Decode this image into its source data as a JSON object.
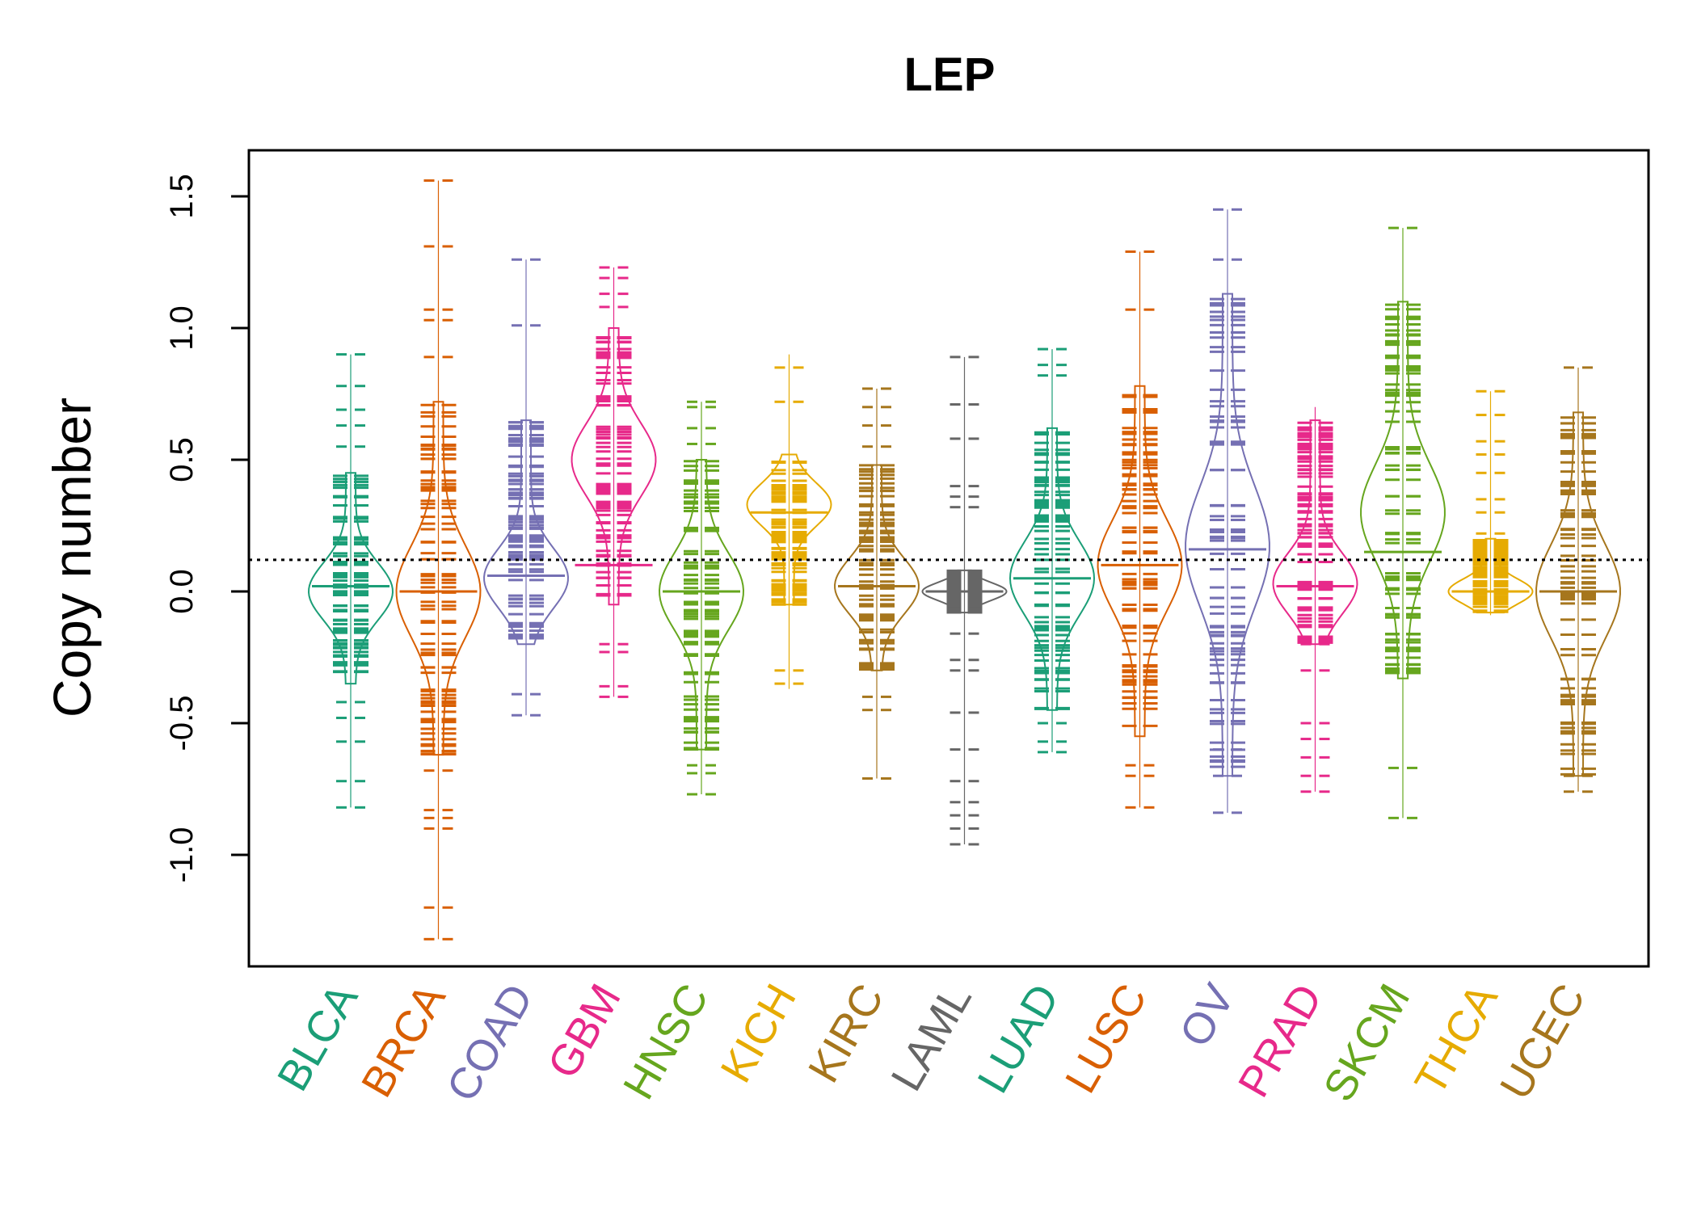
{
  "chart_data": {
    "type": "beanplot",
    "title": "LEP",
    "xlabel": "",
    "ylabel": "Copy number",
    "ylim": [
      -1.43,
      1.68
    ],
    "yticks": [
      -1.0,
      -0.5,
      0.0,
      0.5,
      1.0,
      1.5
    ],
    "ytick_labels": [
      "-1.0",
      "-0.5",
      "0.0",
      "0.5",
      "1.0",
      "1.5"
    ],
    "reference_line": 0.12,
    "categories": [
      "BLCA",
      "BRCA",
      "COAD",
      "GBM",
      "HNSC",
      "KICH",
      "KIRC",
      "LAML",
      "LUAD",
      "LUSC",
      "OV",
      "PRAD",
      "SKCM",
      "THCA",
      "UCEC"
    ],
    "colors": [
      "#1B9E77",
      "#D95F02",
      "#7570B3",
      "#E7298A",
      "#66A61E",
      "#E6AB02",
      "#A6761D",
      "#666666",
      "#1B9E77",
      "#D95F02",
      "#7570B3",
      "#E7298A",
      "#66A61E",
      "#E6AB02",
      "#A6761D"
    ],
    "series": [
      {
        "name": "BLCA",
        "min": -0.82,
        "max": 0.9,
        "median": 0.02,
        "mode": 0.0,
        "upper": 0.45,
        "lower": -0.35,
        "extremes": [
          -0.82,
          -0.72,
          -0.57,
          -0.48,
          -0.42,
          0.55,
          0.63,
          0.69,
          0.78,
          0.9
        ]
      },
      {
        "name": "BRCA",
        "min": -1.32,
        "max": 1.56,
        "median": 0.0,
        "mode": 0.0,
        "upper": 0.72,
        "lower": -0.62,
        "extremes": [
          -1.32,
          -1.2,
          -0.9,
          -0.86,
          -0.83,
          -0.68,
          0.89,
          1.03,
          1.07,
          1.31,
          1.56
        ]
      },
      {
        "name": "COAD",
        "min": -0.47,
        "max": 1.26,
        "median": 0.06,
        "mode": 0.05,
        "upper": 0.65,
        "lower": -0.2,
        "extremes": [
          -0.47,
          -0.39,
          1.01,
          1.26
        ]
      },
      {
        "name": "GBM",
        "min": -0.4,
        "max": 1.23,
        "median": 0.1,
        "mode": 0.5,
        "upper": 1.0,
        "lower": -0.05,
        "extremes": [
          -0.4,
          -0.36,
          -0.23,
          -0.2,
          1.08,
          1.13,
          1.19,
          1.23
        ]
      },
      {
        "name": "HNSC",
        "min": -0.77,
        "max": 0.72,
        "median": 0.0,
        "mode": 0.0,
        "upper": 0.5,
        "lower": -0.6,
        "extremes": [
          -0.77,
          -0.69,
          -0.66,
          0.56,
          0.62,
          0.7,
          0.72
        ]
      },
      {
        "name": "KICH",
        "min": -0.37,
        "max": 0.9,
        "median": 0.3,
        "mode": 0.33,
        "upper": 0.52,
        "lower": -0.05,
        "extremes": [
          -0.35,
          -0.3,
          0.72,
          0.85
        ]
      },
      {
        "name": "KIRC",
        "min": -0.71,
        "max": 0.77,
        "median": 0.02,
        "mode": 0.02,
        "upper": 0.48,
        "lower": -0.3,
        "extremes": [
          -0.71,
          -0.45,
          -0.4,
          0.55,
          0.63,
          0.7,
          0.77
        ]
      },
      {
        "name": "LAML",
        "min": -0.96,
        "max": 0.89,
        "median": 0.0,
        "mode": 0.0,
        "upper": 0.08,
        "lower": -0.08,
        "extremes": [
          -0.96,
          -0.9,
          -0.85,
          -0.8,
          -0.72,
          -0.6,
          -0.46,
          -0.3,
          -0.26,
          -0.16,
          0.32,
          0.36,
          0.4,
          0.58,
          0.71,
          0.89
        ]
      },
      {
        "name": "LUAD",
        "min": -0.61,
        "max": 0.92,
        "median": 0.05,
        "mode": 0.05,
        "upper": 0.62,
        "lower": -0.45,
        "extremes": [
          -0.61,
          -0.57,
          -0.5,
          0.82,
          0.86,
          0.92
        ]
      },
      {
        "name": "LUSC",
        "min": -0.82,
        "max": 1.29,
        "median": 0.1,
        "mode": 0.1,
        "upper": 0.78,
        "lower": -0.55,
        "extremes": [
          -0.82,
          -0.7,
          -0.66,
          1.07,
          1.29
        ]
      },
      {
        "name": "OV",
        "min": -0.84,
        "max": 1.45,
        "median": 0.16,
        "mode": 0.17,
        "upper": 1.13,
        "lower": -0.7,
        "extremes": [
          -0.84,
          -0.7,
          -0.6,
          1.26,
          1.45
        ]
      },
      {
        "name": "PRAD",
        "min": -0.76,
        "max": 0.7,
        "median": 0.02,
        "mode": 0.03,
        "upper": 0.65,
        "lower": -0.2,
        "extremes": [
          -0.76,
          -0.7,
          -0.63,
          -0.56,
          -0.5,
          -0.3,
          -0.2
        ]
      },
      {
        "name": "SKCM",
        "min": -0.86,
        "max": 1.38,
        "median": 0.15,
        "mode": 0.3,
        "upper": 1.1,
        "lower": -0.33,
        "extremes": [
          -0.86,
          -0.67,
          1.38
        ]
      },
      {
        "name": "THCA",
        "min": -0.09,
        "max": 0.76,
        "median": 0.0,
        "mode": 0.0,
        "upper": 0.2,
        "lower": -0.08,
        "extremes": [
          0.22,
          0.3,
          0.35,
          0.45,
          0.52,
          0.57,
          0.67,
          0.76
        ]
      },
      {
        "name": "UCEC",
        "min": -0.76,
        "max": 0.85,
        "median": 0.0,
        "mode": 0.0,
        "upper": 0.68,
        "lower": -0.7,
        "extremes": [
          -0.76,
          -0.7,
          0.85
        ]
      }
    ]
  }
}
